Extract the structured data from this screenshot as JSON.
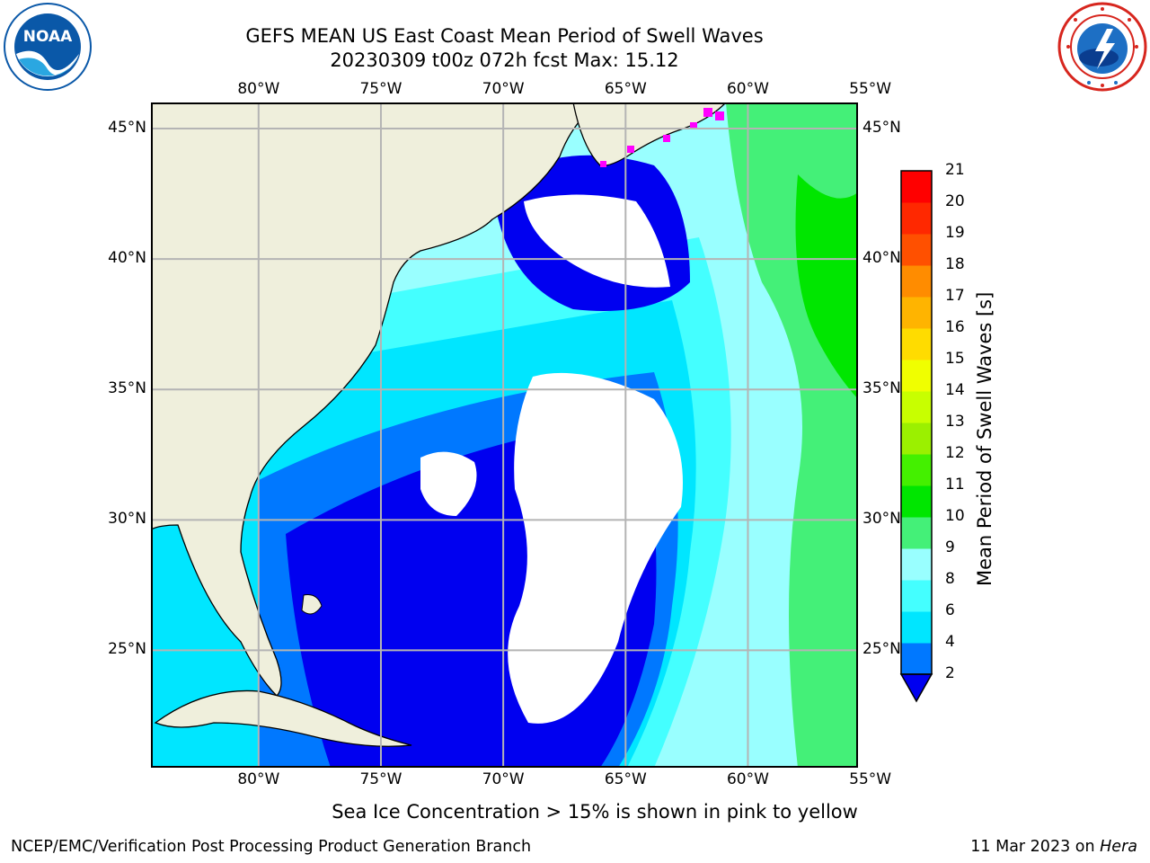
{
  "header": {
    "title_line1": "GEFS MEAN US East Coast Mean Period of Swell Waves",
    "title_line2": "20230309 t00z 072h fcst   Max: 15.12"
  },
  "logos": {
    "noaa": {
      "text": "NOAA",
      "icon": "noaa-logo-icon",
      "colors": {
        "blue": "#0a58a8",
        "light": "#2aa7e1"
      }
    },
    "nws": {
      "icon": "nws-logo-icon",
      "ring_color": "#d7261e"
    }
  },
  "map": {
    "lon_ticks": [
      "80°W",
      "75°W",
      "70°W",
      "65°W",
      "60°W",
      "55°W"
    ],
    "lon_values": [
      -80,
      -75,
      -70,
      -65,
      -60,
      -55
    ],
    "lat_ticks": [
      "45°N",
      "40°N",
      "35°N",
      "30°N",
      "25°N"
    ],
    "lat_values": [
      45,
      40,
      35,
      30,
      25
    ],
    "extent": {
      "lon_min": -84.4,
      "lon_max": -55.5,
      "lat_min": 20.5,
      "lat_max": 46.0
    },
    "grid": true,
    "colors": {
      "land": "#efefdc",
      "coast": "#000000",
      "grid": "#b4b4b4",
      "nodata": "#ffffff"
    }
  },
  "colorbar": {
    "label": "Mean Period of Swell Waves [s]",
    "ticks": [
      "2",
      "4",
      "6",
      "8",
      "9",
      "10",
      "11",
      "12",
      "13",
      "14",
      "15",
      "16",
      "17",
      "18",
      "19",
      "20",
      "21"
    ],
    "colors": [
      "#0000f0",
      "#0078ff",
      "#00e6ff",
      "#44ffff",
      "#99ffff",
      "#44f078",
      "#00e600",
      "#44f000",
      "#9bf000",
      "#c8ff00",
      "#f0ff00",
      "#ffdc00",
      "#ffb400",
      "#ff8c00",
      "#ff5000",
      "#ff2800",
      "#ff0000"
    ],
    "extend": "min"
  },
  "note": "Sea Ice Concentration > 15% is shown in pink to yellow",
  "footer": {
    "left": "NCEP/EMC/Verification Post Processing Product Generation Branch",
    "right_prefix": "11 Mar 2023 on ",
    "right_host": "Hera"
  }
}
